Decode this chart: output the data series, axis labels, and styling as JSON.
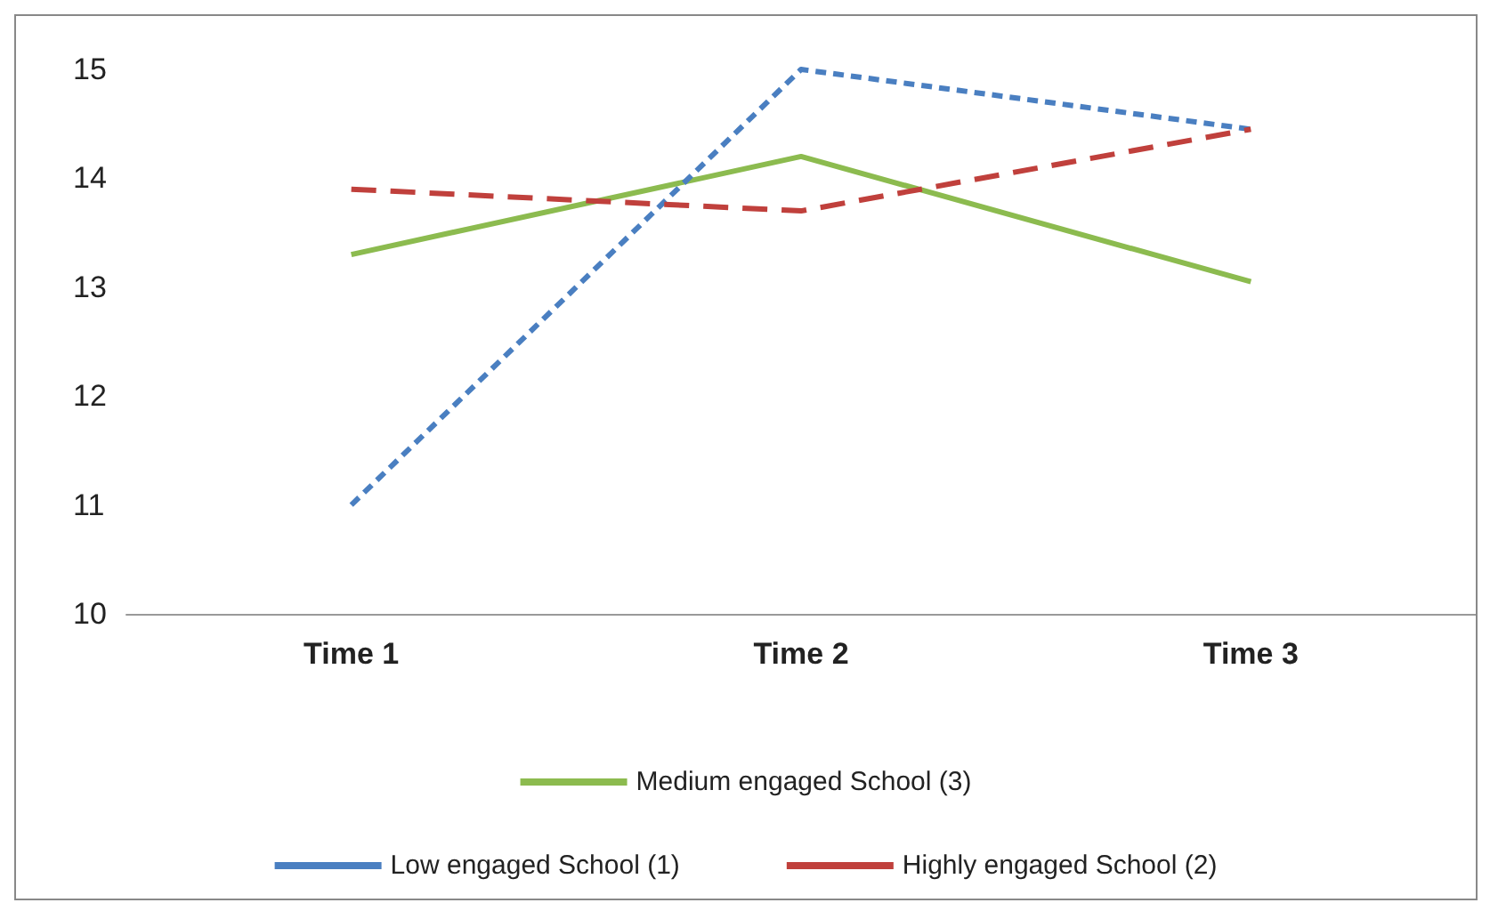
{
  "chart_data": {
    "type": "line",
    "categories": [
      "Time 1",
      "Time 2",
      "Time 3"
    ],
    "series": [
      {
        "name": "Medium engaged School (3)",
        "color": "#8cbb4f",
        "values": [
          13.3,
          14.2,
          13.05
        ],
        "line_style": "solid"
      },
      {
        "name": "Low engaged School (1)",
        "color": "#4a7fc1",
        "values": [
          11.0,
          15.0,
          14.45
        ],
        "line_style": "dotted"
      },
      {
        "name": "Highly engaged School (2)",
        "color": "#c0403c",
        "values": [
          13.9,
          13.7,
          14.45
        ],
        "line_style": "dashed"
      }
    ],
    "ylim": [
      10,
      15
    ],
    "yticks": [
      10,
      11,
      12,
      13,
      14,
      15
    ],
    "grid": false,
    "legend": "bottom",
    "marker": "none"
  }
}
